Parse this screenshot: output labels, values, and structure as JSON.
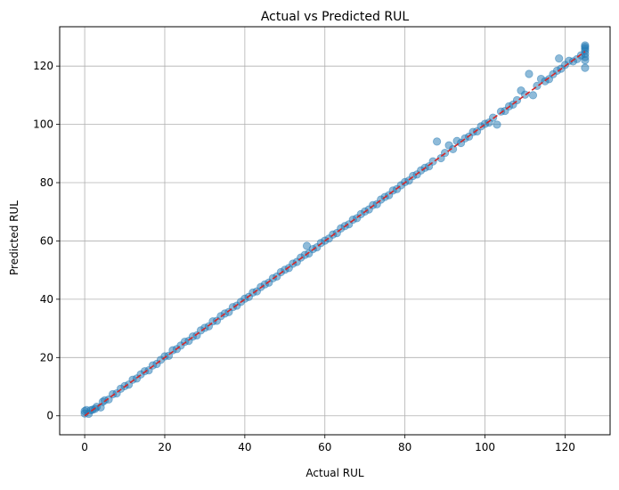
{
  "chart_data": {
    "type": "scatter",
    "title": "Actual vs Predicted RUL",
    "xlabel": "Actual RUL",
    "ylabel": "Predicted RUL",
    "xlim": [
      -6.25,
      131.25
    ],
    "ylim": [
      -6.5,
      133.5
    ],
    "xticks": [
      0,
      20,
      40,
      60,
      80,
      100,
      120
    ],
    "yticks": [
      0,
      20,
      40,
      60,
      80,
      100,
      120
    ],
    "grid": true,
    "colors": {
      "points": "#1f77b4",
      "reference_line": "#d62728",
      "grid": "#b0b0b0"
    },
    "points": [
      [
        0,
        0.8
      ],
      [
        0,
        1.6
      ],
      [
        0.4,
        2.0
      ],
      [
        1,
        0.7
      ],
      [
        1.5,
        1.9
      ],
      [
        2,
        2.1
      ],
      [
        2.6,
        2.4
      ],
      [
        3,
        3.1
      ],
      [
        4,
        2.9
      ],
      [
        4.5,
        4.8
      ],
      [
        5,
        5.3
      ],
      [
        6,
        5.6
      ],
      [
        7,
        7.4
      ],
      [
        8,
        7.7
      ],
      [
        9,
        9.3
      ],
      [
        10,
        10.2
      ],
      [
        11,
        10.7
      ],
      [
        12,
        12.4
      ],
      [
        13,
        12.8
      ],
      [
        14,
        14.2
      ],
      [
        15,
        15.3
      ],
      [
        16,
        15.6
      ],
      [
        17,
        17.3
      ],
      [
        18,
        17.8
      ],
      [
        19,
        19.2
      ],
      [
        20,
        20.4
      ],
      [
        21,
        20.6
      ],
      [
        22,
        22.5
      ],
      [
        23,
        22.9
      ],
      [
        24,
        24.1
      ],
      [
        25,
        25.4
      ],
      [
        26,
        25.7
      ],
      [
        27,
        27.2
      ],
      [
        28,
        27.6
      ],
      [
        29,
        29.3
      ],
      [
        30,
        30.2
      ],
      [
        31,
        30.7
      ],
      [
        32,
        32.4
      ],
      [
        33,
        32.6
      ],
      [
        34,
        34.2
      ],
      [
        35,
        35.1
      ],
      [
        36,
        35.6
      ],
      [
        37,
        37.3
      ],
      [
        38,
        37.8
      ],
      [
        39,
        39.1
      ],
      [
        40,
        40.2
      ],
      [
        41,
        40.8
      ],
      [
        42,
        42.3
      ],
      [
        43,
        42.7
      ],
      [
        44,
        44.2
      ],
      [
        45,
        45.1
      ],
      [
        46,
        45.7
      ],
      [
        47,
        47.2
      ],
      [
        48,
        47.8
      ],
      [
        49,
        49.3
      ],
      [
        50,
        50.1
      ],
      [
        51,
        50.7
      ],
      [
        52,
        52.2
      ],
      [
        53,
        52.8
      ],
      [
        54,
        54.3
      ],
      [
        55,
        55.2
      ],
      [
        55.5,
        58.3
      ],
      [
        56,
        55.7
      ],
      [
        57,
        57.2
      ],
      [
        58,
        57.8
      ],
      [
        59,
        59.3
      ],
      [
        60,
        60.1
      ],
      [
        61,
        60.8
      ],
      [
        62,
        62.2
      ],
      [
        63,
        62.7
      ],
      [
        64,
        64.3
      ],
      [
        65,
        65.1
      ],
      [
        66,
        65.7
      ],
      [
        67,
        67.3
      ],
      [
        68,
        67.8
      ],
      [
        69,
        69.2
      ],
      [
        70,
        70.1
      ],
      [
        71,
        70.8
      ],
      [
        72,
        72.3
      ],
      [
        73,
        72.6
      ],
      [
        74,
        74.2
      ],
      [
        75,
        75.1
      ],
      [
        76,
        75.7
      ],
      [
        77,
        77.3
      ],
      [
        78,
        77.8
      ],
      [
        79,
        79.1
      ],
      [
        80,
        80.2
      ],
      [
        81,
        80.7
      ],
      [
        82,
        82.3
      ],
      [
        83,
        82.8
      ],
      [
        84,
        84.2
      ],
      [
        85,
        85.1
      ],
      [
        86,
        85.6
      ],
      [
        87,
        87.3
      ],
      [
        88,
        94.1
      ],
      [
        89,
        88.4
      ],
      [
        90,
        90.2
      ],
      [
        91,
        92.8
      ],
      [
        92,
        91.5
      ],
      [
        93,
        94.3
      ],
      [
        94,
        93.6
      ],
      [
        95,
        95.2
      ],
      [
        96,
        95.8
      ],
      [
        97,
        97.4
      ],
      [
        98,
        97.6
      ],
      [
        99,
        99.3
      ],
      [
        100,
        100.2
      ],
      [
        101,
        100.6
      ],
      [
        102,
        102.3
      ],
      [
        103,
        99.9
      ],
      [
        104,
        104.4
      ],
      [
        105,
        104.6
      ],
      [
        106,
        106.2
      ],
      [
        107,
        106.8
      ],
      [
        108,
        108.3
      ],
      [
        109,
        111.6
      ],
      [
        110,
        110.2
      ],
      [
        111,
        117.3
      ],
      [
        112,
        110.0
      ],
      [
        113,
        113.2
      ],
      [
        114,
        115.6
      ],
      [
        115,
        114.8
      ],
      [
        116,
        115.5
      ],
      [
        117,
        117.2
      ],
      [
        118,
        118.4
      ],
      [
        118.5,
        122.6
      ],
      [
        119,
        119.1
      ],
      [
        120,
        120.4
      ],
      [
        121,
        121.8
      ],
      [
        122,
        121.6
      ],
      [
        123,
        122.4
      ],
      [
        124,
        123.7
      ],
      [
        125,
        119.4
      ],
      [
        125,
        122.0
      ],
      [
        125,
        123.1
      ],
      [
        125,
        124.2
      ],
      [
        125,
        125.3
      ],
      [
        125,
        126.0
      ],
      [
        125,
        126.6
      ],
      [
        125,
        127.1
      ]
    ],
    "reference_line": [
      [
        0,
        0
      ],
      [
        125,
        125
      ]
    ]
  }
}
